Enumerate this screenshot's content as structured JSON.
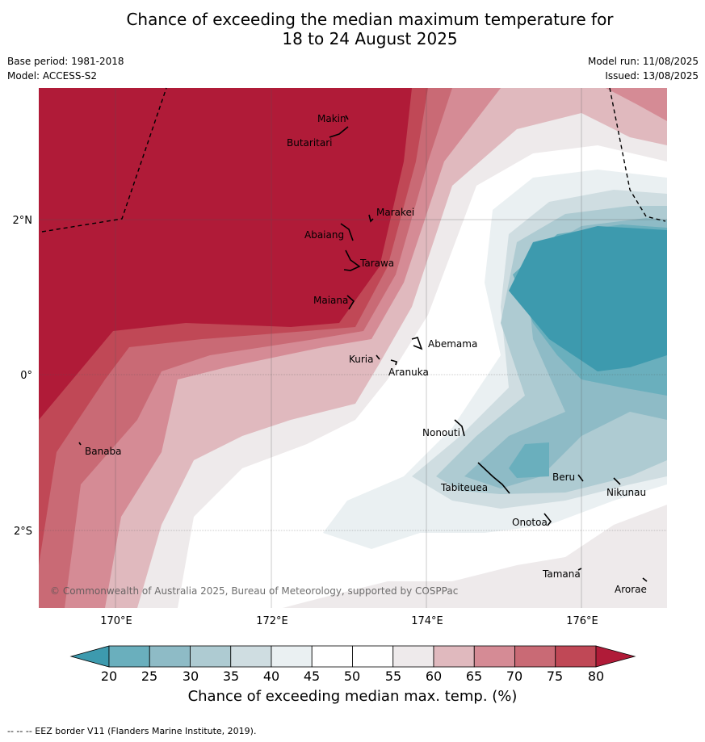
{
  "title_line1": "Chance of exceeding the median maximum temperature for",
  "title_line2": "18 to 24 August 2025",
  "base_period": "Base period: 1981-2018",
  "model": "Model: ACCESS-S2",
  "model_run": "Model run: 11/08/2025",
  "issued": "Issued: 13/08/2025",
  "copyright": "© Commonwealth of Australia 2025, Bureau of Meteorology, supported by COSPPac",
  "islands": [
    "Makin",
    "Butaritari",
    "Marakei",
    "Abaiang",
    "Tarawa",
    "Maiana",
    "Abemama",
    "Kuria",
    "Aranuka",
    "Banaba",
    "Nonouti",
    "Tabiteuea",
    "Beru",
    "Nikunau",
    "Onotoa",
    "Tamana",
    "Arorae"
  ],
  "lat_labels": [
    "2°N",
    "0°",
    "2°S"
  ],
  "lon_labels": [
    "170°E",
    "172°E",
    "174°E",
    "176°E"
  ],
  "colorbar": {
    "ticks": [
      "20",
      "25",
      "30",
      "35",
      "40",
      "45",
      "50",
      "55",
      "60",
      "65",
      "70",
      "75",
      "80"
    ],
    "colors": [
      "#3d9aae",
      "#6aafbd",
      "#8ebbc6",
      "#aecbd2",
      "#cfdde1",
      "#eaf0f2",
      "#ffffff",
      "#ffffff",
      "#eeeaeb",
      "#e0b9be",
      "#d58b95",
      "#c96a75",
      "#c04856",
      "#b01b38"
    ],
    "label": "Chance of exceeding median max. temp. (%)"
  },
  "footer": "--  --  -- EEZ border V11 (Flanders Marine Institute, 2019)."
}
